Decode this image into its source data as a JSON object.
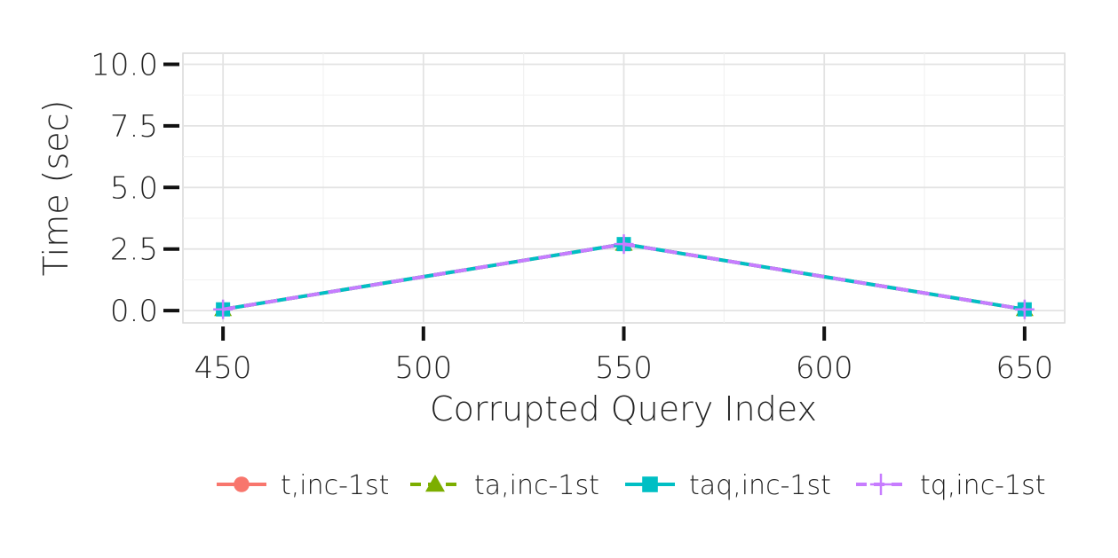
{
  "chart_data": {
    "type": "line",
    "title": "",
    "xlabel": "Corrupted Query Index",
    "ylabel": "Time (sec)",
    "x": [
      450,
      550,
      650
    ],
    "xlim": [
      440,
      660
    ],
    "ylim": [
      -0.5,
      10.45
    ],
    "xticks": [
      450,
      500,
      550,
      600,
      650
    ],
    "xtick_labels": [
      "450",
      "500",
      "550",
      "600",
      "650"
    ],
    "yticks": [
      0,
      2.5,
      5,
      7.5,
      10
    ],
    "ytick_labels": [
      "0.0",
      "2.5",
      "5.0",
      "7.5",
      "10.0"
    ],
    "grid": true,
    "legend_position": "bottom-right",
    "series": [
      {
        "name": "t,inc-1st",
        "values": [
          0.05,
          2.7,
          0.05
        ],
        "color": "#F8766D",
        "marker": "circle",
        "dash": "solid"
      },
      {
        "name": "ta,inc-1st",
        "values": [
          0.05,
          2.7,
          0.05
        ],
        "color": "#7CAE00",
        "marker": "triangle",
        "dash": "dashed"
      },
      {
        "name": "taq,inc-1st",
        "values": [
          0.05,
          2.7,
          0.05
        ],
        "color": "#00BFC4",
        "marker": "square",
        "dash": "solid"
      },
      {
        "name": "tq,inc-1st",
        "values": [
          0.05,
          2.7,
          0.05
        ],
        "color": "#C77CFF",
        "marker": "plus",
        "dash": "dashed"
      }
    ]
  }
}
